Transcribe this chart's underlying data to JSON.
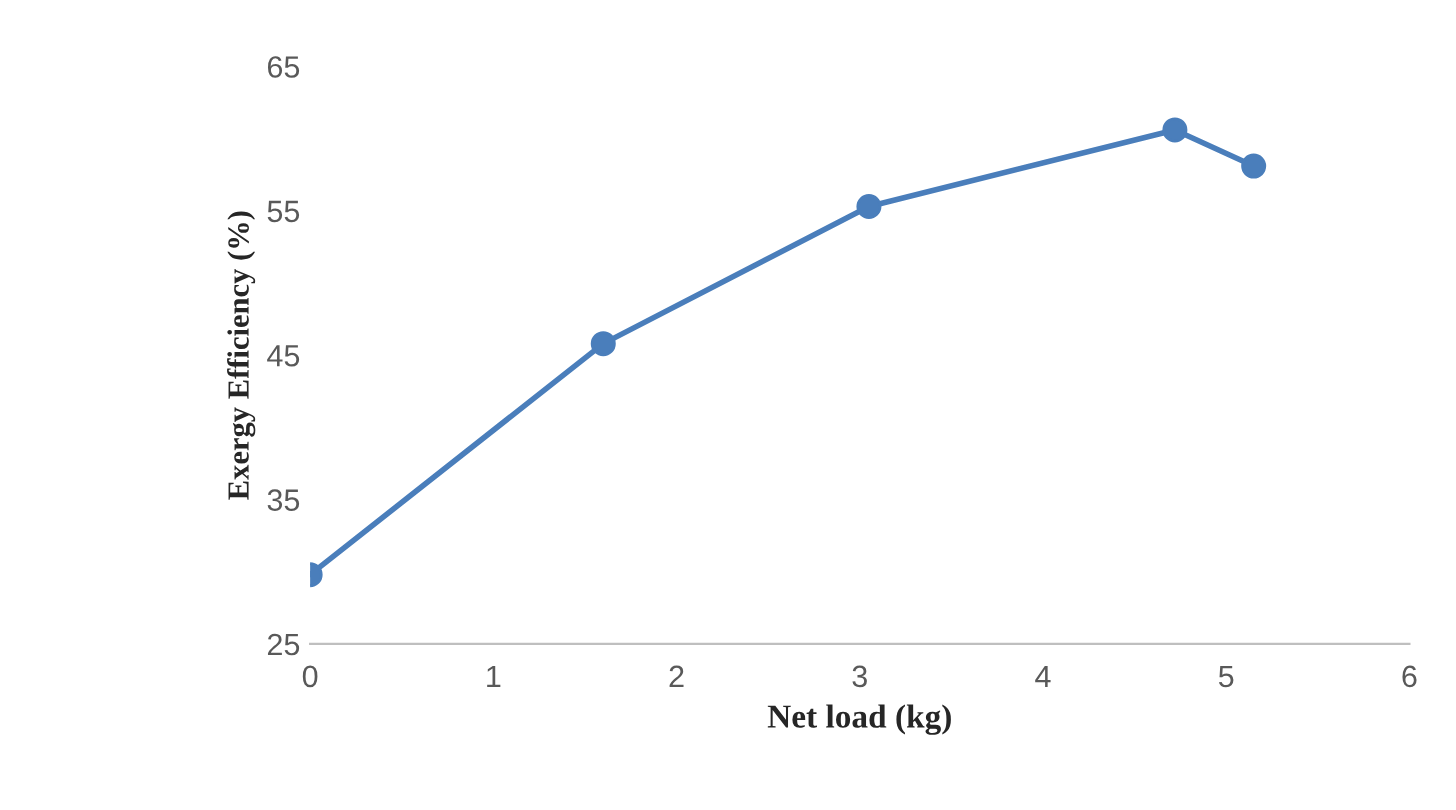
{
  "chart_data": {
    "type": "line",
    "xlabel": "Net load (kg)",
    "ylabel": "Exergy Efficiency (%)",
    "x": [
      0,
      1.6,
      3.05,
      4.72,
      5.15
    ],
    "series": [
      {
        "color": "#4a7ebb",
        "values": [
          29.8,
          45.8,
          55.3,
          60.6,
          58.1
        ]
      }
    ],
    "xlim": [
      0,
      6
    ],
    "xticks": [
      0,
      1,
      2,
      3,
      4,
      5,
      6
    ],
    "ylim": [
      25,
      65
    ],
    "yticks": [
      25,
      35,
      45,
      55,
      65
    ],
    "grid": false,
    "legend": false,
    "marker": "circle",
    "line_style": "solid"
  }
}
